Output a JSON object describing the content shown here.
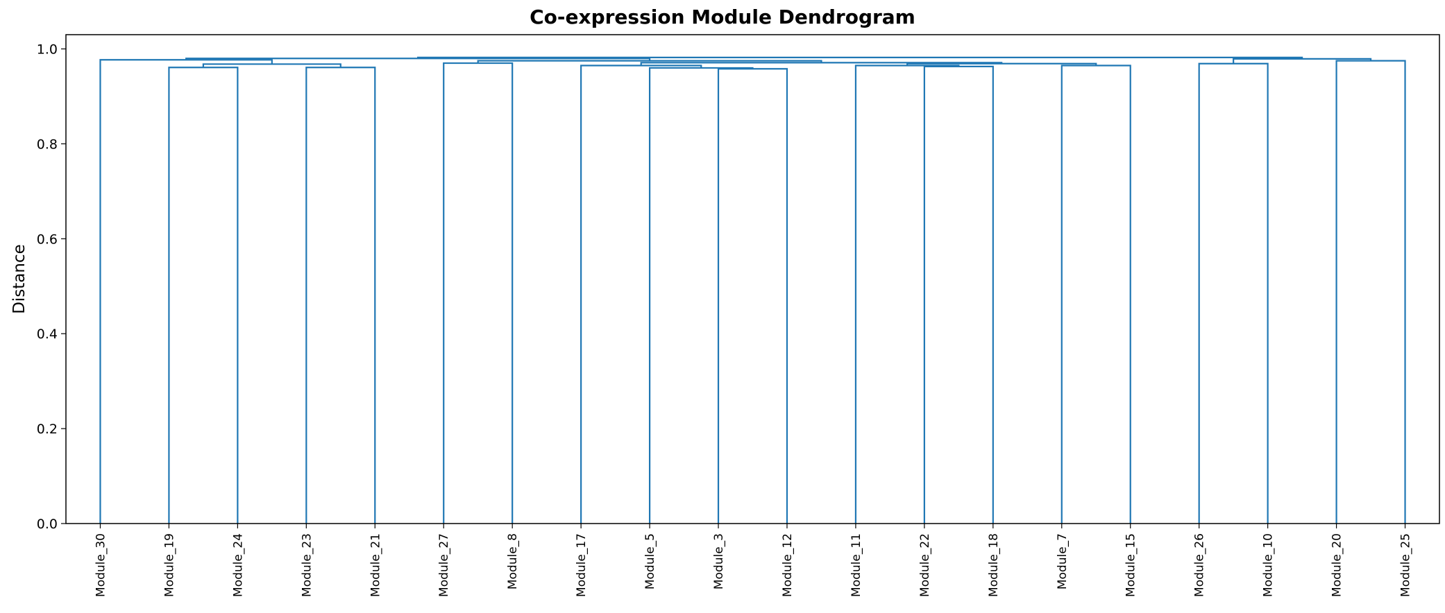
{
  "chart_data": {
    "type": "dendrogram",
    "title": "Co-expression Module Dendrogram",
    "xlabel": "",
    "ylabel": "Distance",
    "ylim": [
      0,
      1.03
    ],
    "yticks": [
      0.0,
      0.2,
      0.4,
      0.6,
      0.8,
      1.0
    ],
    "ytick_labels": [
      "0.0",
      "0.2",
      "0.4",
      "0.6",
      "0.8",
      "1.0"
    ],
    "leaves": [
      "Module_30",
      "Module_19",
      "Module_24",
      "Module_23",
      "Module_21",
      "Module_27",
      "Module_8",
      "Module_17",
      "Module_5",
      "Module_3",
      "Module_12",
      "Module_11",
      "Module_22",
      "Module_18",
      "Module_7",
      "Module_15",
      "Module_26",
      "Module_10",
      "Module_20",
      "Module_25"
    ],
    "grid": false,
    "legend": "none",
    "color": "#1f77b4",
    "merges": [
      {
        "left": "Module_3",
        "right": "Module_12",
        "height": 0.958
      },
      {
        "left": "Module_5",
        "right": "(Module_3,Module_12)",
        "height": 0.96
      },
      {
        "left": "Module_19",
        "right": "Module_24",
        "height": 0.961
      },
      {
        "left": "Module_23",
        "right": "Module_21",
        "height": 0.961
      },
      {
        "left": "Module_22",
        "right": "Module_18",
        "height": 0.963
      },
      {
        "left": "Module_11",
        "right": "(Module_22,Module_18)",
        "height": 0.965
      },
      {
        "left": "Module_17",
        "right": "(Module_5,(Module_3,Module_12))",
        "height": 0.965
      },
      {
        "left": "Module_7",
        "right": "Module_15",
        "height": 0.965
      },
      {
        "left": "(Module_19,Module_24)",
        "right": "(Module_23,Module_21)",
        "height": 0.968
      },
      {
        "left": "(Module_11,(Module_22,Module_18))",
        "right": "(Module_7,Module_15)",
        "height": 0.969
      },
      {
        "left": "Module_26",
        "right": "Module_10",
        "height": 0.969
      },
      {
        "left": "Module_27",
        "right": "Module_8",
        "height": 0.97
      },
      {
        "left": "(Module_17,...)",
        "right": "(Module_11,...,Module_15)",
        "height": 0.971
      },
      {
        "left": "Module_20",
        "right": "Module_25",
        "height": 0.975
      },
      {
        "left": "(Module_27,Module_8)",
        "right": "(Module_17,...,Module_15)",
        "height": 0.975
      },
      {
        "left": "Module_30",
        "right": "((Module_19,Module_24),(Module_23,Module_21))",
        "height": 0.977
      },
      {
        "left": "(Module_26,Module_10)",
        "right": "(Module_20,Module_25)",
        "height": 0.979
      },
      {
        "left": "(Module_30,...)",
        "right": "(Module_27,...)",
        "height": 0.98
      },
      {
        "left": "(Module_30,...,Module_15)",
        "right": "(Module_26,...,Module_25)",
        "height": 0.982
      }
    ]
  }
}
